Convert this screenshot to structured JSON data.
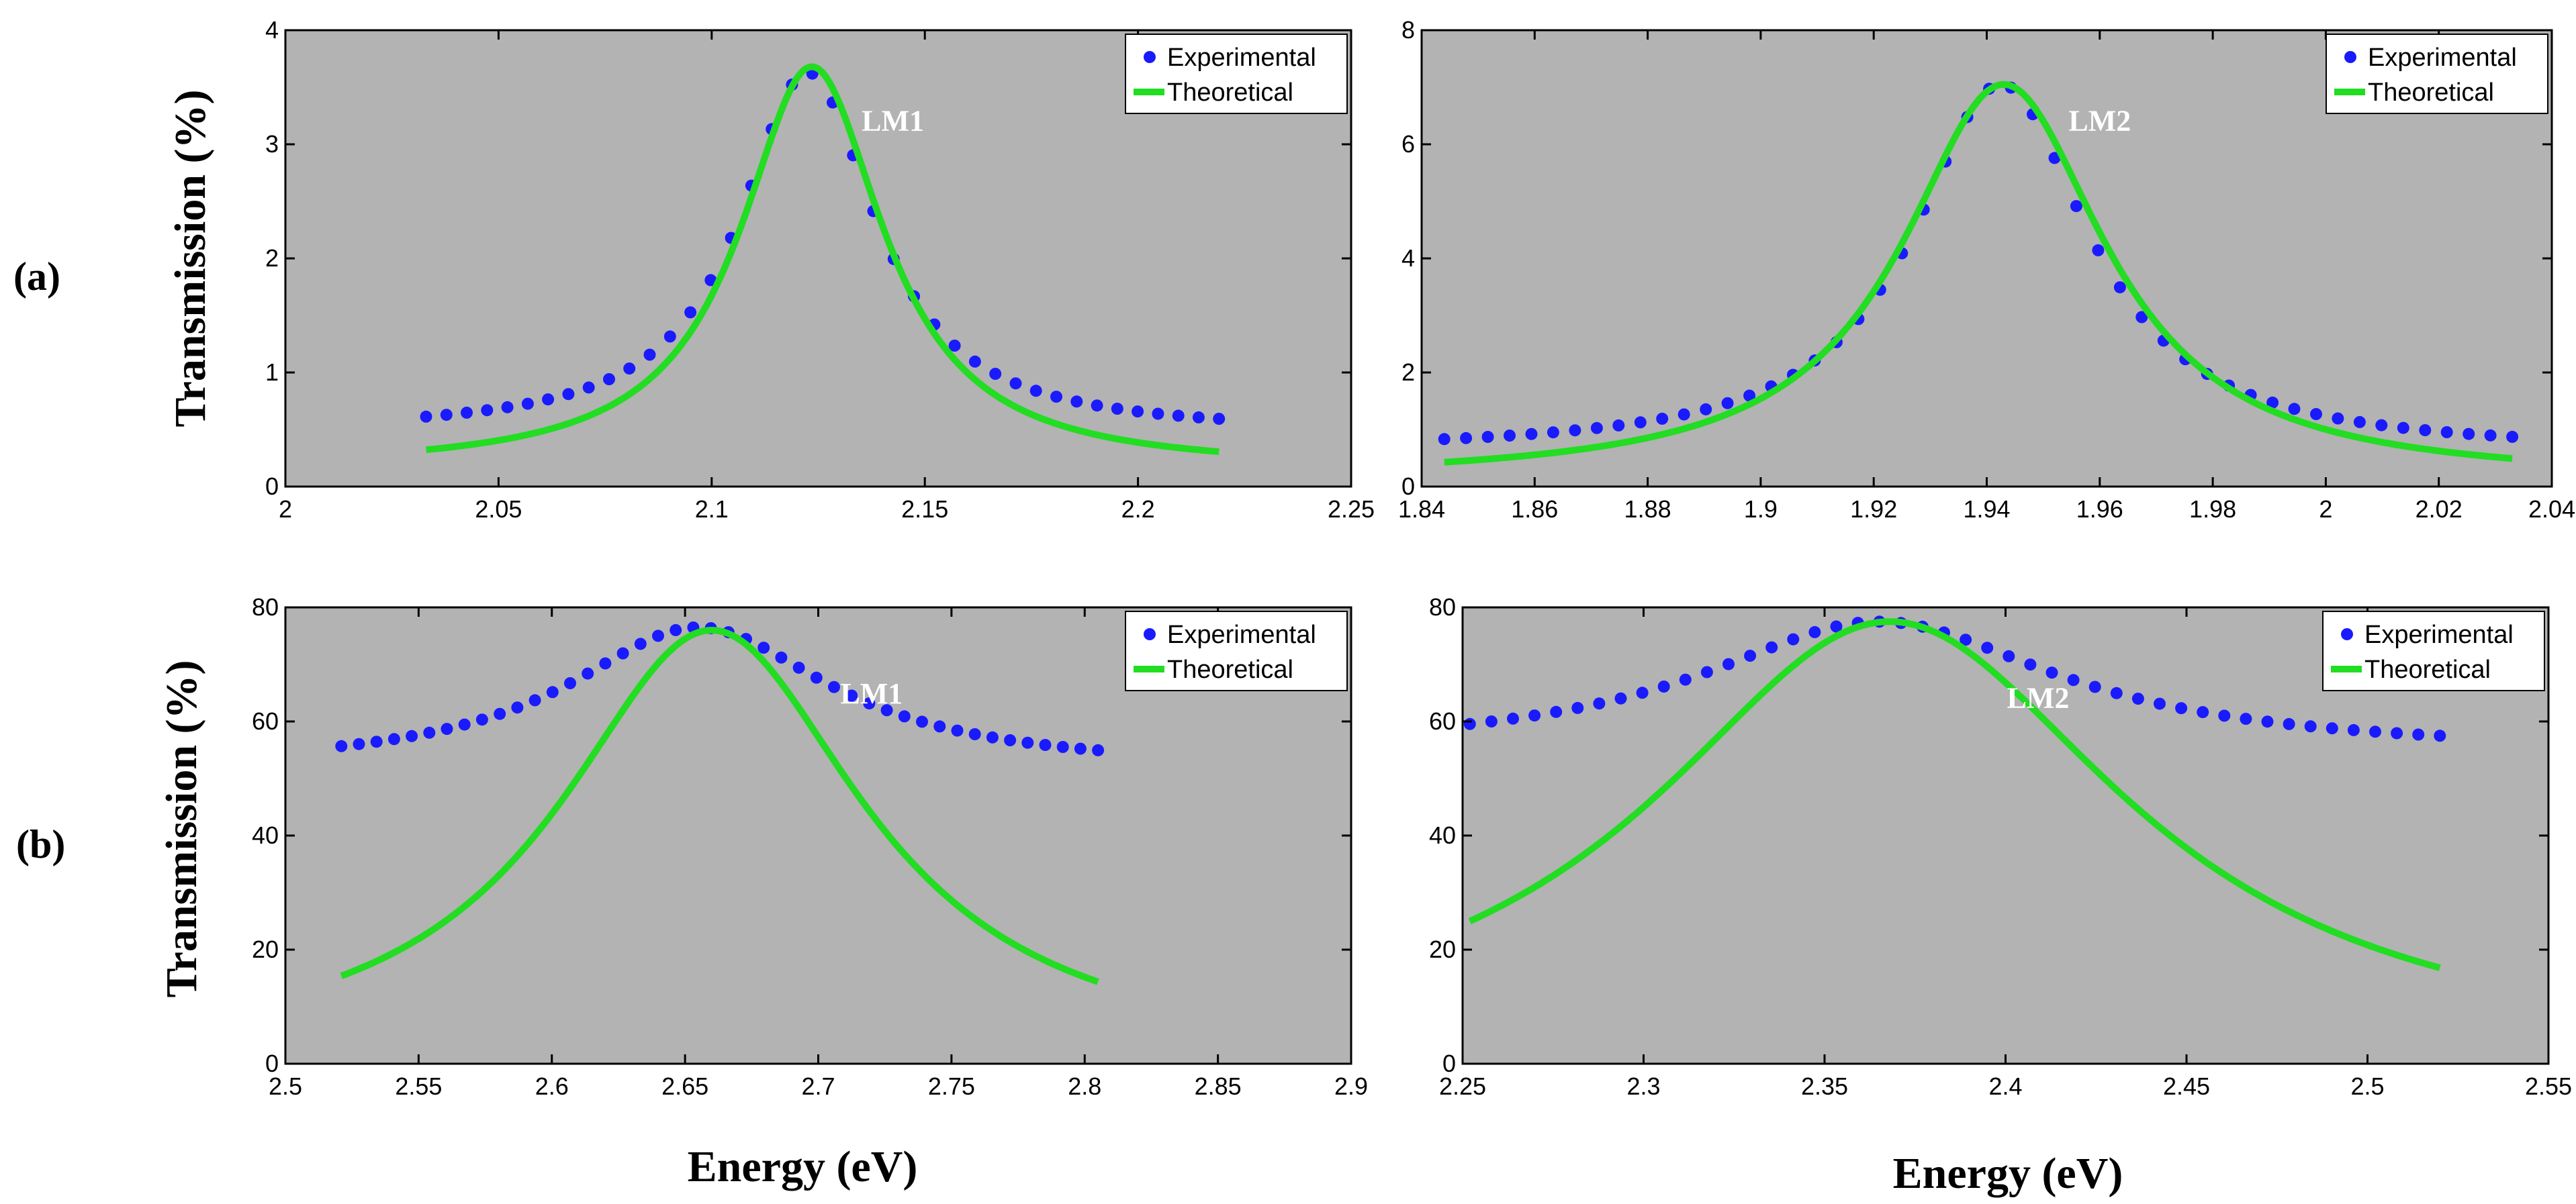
{
  "figure": {
    "row_labels": [
      "(a)",
      "(b)"
    ],
    "y_axis_label": "Transmission (%)",
    "x_axis_label": "Energy (eV)"
  },
  "colors": {
    "plot_background": "#b3b3b3",
    "experimental": "#1a1aff",
    "theoretical": "#22dd22"
  },
  "chart_data": [
    {
      "type": "scatter",
      "panel": "a-left",
      "xlim": [
        2,
        2.25
      ],
      "ylim": [
        0,
        4
      ],
      "xticks": [
        "2",
        "2.05",
        "2.1",
        "2.15",
        "2.2",
        "2.25"
      ],
      "yticks": [
        "0",
        "1",
        "2",
        "3",
        "4"
      ],
      "peak_label": "LM1",
      "legend": [
        "Experimental",
        "Theoretical"
      ],
      "series": [
        {
          "name": "Experimental",
          "kind": "dots",
          "x_start": 2.033,
          "x_end": 2.219,
          "count": 40,
          "x0": 2.1225,
          "gamma": 0.0195,
          "peak": 3.16,
          "base": 0.47
        },
        {
          "name": "Theoretical",
          "kind": "line",
          "x_start": 2.033,
          "x_end": 2.219,
          "x0": 2.1235,
          "gamma": 0.0205,
          "peak": 3.53,
          "base": 0.15
        }
      ]
    },
    {
      "type": "scatter",
      "panel": "a-right",
      "xlim": [
        1.84,
        2.04
      ],
      "ylim": [
        0,
        8
      ],
      "xticks": [
        "1.84",
        "1.86",
        "1.88",
        "1.9",
        "1.92",
        "1.94",
        "1.96",
        "1.98",
        "2",
        "2.02",
        "2.04"
      ],
      "yticks": [
        "0",
        "2",
        "4",
        "6",
        "8"
      ],
      "peak_label": "LM2",
      "legend": [
        "Experimental",
        "Theoretical"
      ],
      "series": [
        {
          "name": "Experimental",
          "kind": "dots",
          "x_start": 1.844,
          "x_end": 2.033,
          "count": 50,
          "x0": 1.9425,
          "gamma": 0.019,
          "peak": 6.45,
          "base": 0.6
        },
        {
          "name": "Theoretical",
          "kind": "line",
          "x_start": 1.844,
          "x_end": 2.033,
          "x0": 1.943,
          "gamma": 0.022,
          "peak": 6.95,
          "base": 0.1
        }
      ]
    },
    {
      "type": "scatter",
      "panel": "b-left",
      "xlim": [
        2.5,
        2.9
      ],
      "ylim": [
        0,
        80
      ],
      "xticks": [
        "2.5",
        "2.55",
        "2.6",
        "2.65",
        "2.7",
        "2.75",
        "2.8",
        "2.85",
        "2.9"
      ],
      "yticks": [
        "0",
        "20",
        "40",
        "60",
        "80"
      ],
      "peak_label": "LM1",
      "legend": [
        "Experimental",
        "Theoretical"
      ],
      "series": [
        {
          "name": "Experimental",
          "kind": "dots",
          "x_start": 2.521,
          "x_end": 2.805,
          "count": 44,
          "x0": 2.655,
          "gamma": 0.06,
          "peak": 25,
          "base": 51.5
        },
        {
          "name": "Theoretical",
          "kind": "line",
          "x_start": 2.521,
          "x_end": 2.805,
          "x0": 2.66,
          "gamma": 0.07,
          "peak": 76,
          "base": 0
        }
      ]
    },
    {
      "type": "scatter",
      "panel": "b-right",
      "xlim": [
        2.25,
        2.55
      ],
      "ylim": [
        0,
        80
      ],
      "xticks": [
        "2.25",
        "2.3",
        "2.35",
        "2.4",
        "2.45",
        "2.5",
        "2.55"
      ],
      "yticks": [
        "0",
        "20",
        "40",
        "60",
        "80"
      ],
      "peak_label": "LM2",
      "legend": [
        "Experimental",
        "Theoretical"
      ],
      "series": [
        {
          "name": "Experimental",
          "kind": "dots",
          "x_start": 2.252,
          "x_end": 2.52,
          "count": 46,
          "x0": 2.365,
          "gamma": 0.06,
          "peak": 23,
          "base": 54.5
        },
        {
          "name": "Theoretical",
          "kind": "line",
          "x_start": 2.252,
          "x_end": 2.52,
          "x0": 2.368,
          "gamma": 0.08,
          "peak": 77.5,
          "base": 0
        }
      ]
    }
  ]
}
